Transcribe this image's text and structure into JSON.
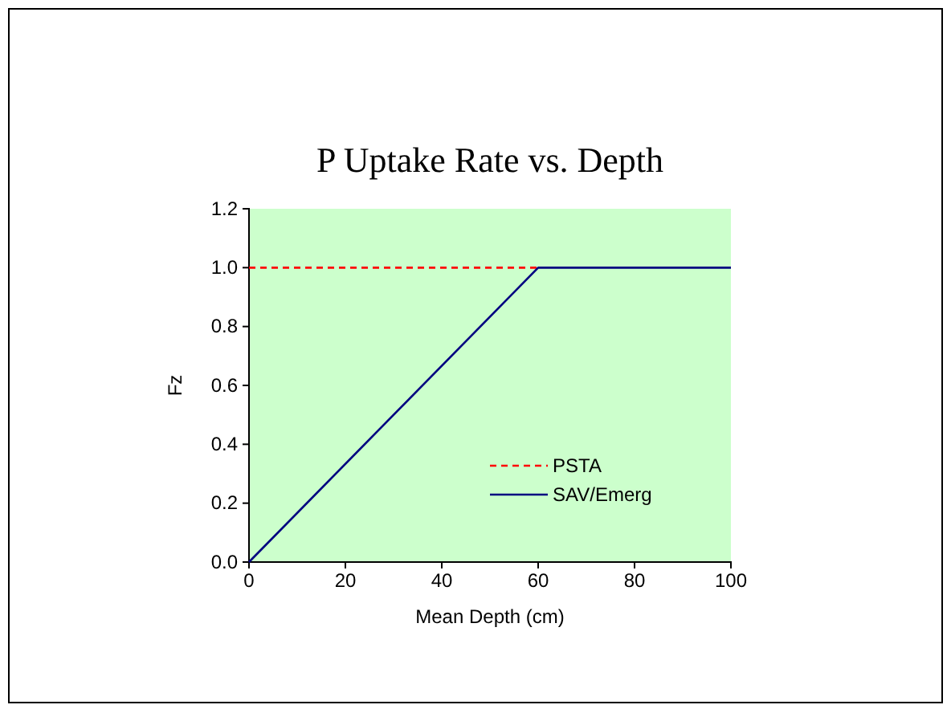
{
  "chart_data": {
    "type": "line",
    "title": "P Uptake Rate vs. Depth",
    "xlabel": "Mean Depth (cm)",
    "ylabel": "Fz",
    "series": [
      {
        "name": "PSTA",
        "color": "#ff0000",
        "line_style": "dashed",
        "x": [
          0,
          60
        ],
        "values": [
          1,
          1
        ]
      },
      {
        "name": "SAV/Emerg",
        "color": "#000080",
        "line_style": "solid",
        "x": [
          0,
          60,
          100
        ],
        "values": [
          0,
          1,
          1
        ]
      }
    ],
    "xlim": [
      0,
      100
    ],
    "xticks": [
      0,
      20,
      40,
      60,
      80,
      100
    ],
    "ylim": [
      0,
      1.2
    ],
    "yticks": [
      {
        "value": 0,
        "label": "0.0"
      },
      {
        "value": 0.2,
        "label": "0.2"
      },
      {
        "value": 0.4,
        "label": "0.4"
      },
      {
        "value": 0.6,
        "label": "0.6"
      },
      {
        "value": 0.8,
        "label": "0.8"
      },
      {
        "value": 1,
        "label": "1.0"
      },
      {
        "value": 1.2,
        "label": "1.2"
      }
    ],
    "grid": false,
    "legend": "bottom right",
    "marker": "none"
  }
}
